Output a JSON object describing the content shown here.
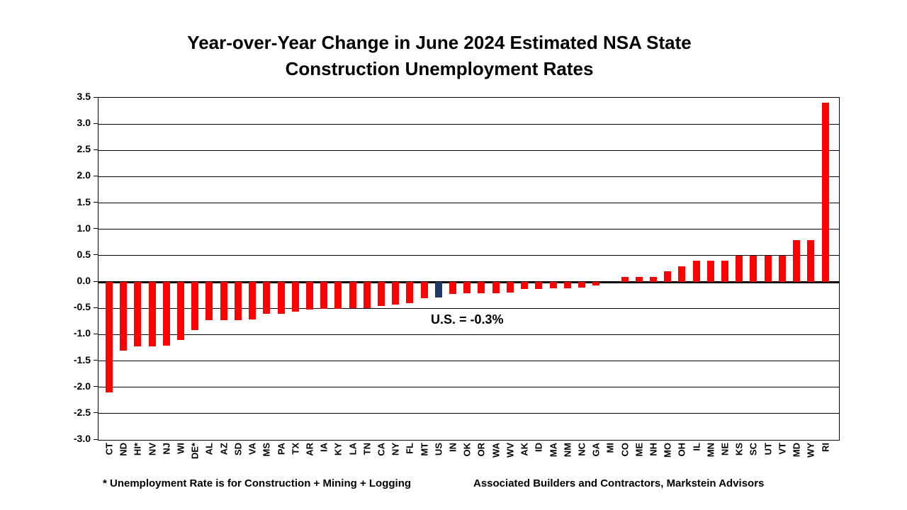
{
  "title": {
    "line1": "Year-over-Year Change in June 2024 Estimated NSA State",
    "line2": "Construction Unemployment Rates"
  },
  "annotation": {
    "us_note": "U.S. = -0.3%"
  },
  "footnotes": {
    "left": "* Unemployment Rate is for Construction + Mining + Logging",
    "right": "Associated Builders and Contractors, Markstein Advisors"
  },
  "colors": {
    "bar": "#FF0000",
    "us_bar": "#1F3864",
    "axis": "#000000",
    "background": "#FFFFFF"
  },
  "chart_data": {
    "type": "bar",
    "title": "Year-over-Year Change in June 2024 Estimated NSA State Construction Unemployment Rates",
    "xlabel": "",
    "ylabel": "",
    "ylim": [
      -3.0,
      3.5
    ],
    "yticks": [
      3.5,
      3.0,
      2.5,
      2.0,
      1.5,
      1.0,
      0.5,
      0.0,
      -0.5,
      -1.0,
      -1.5,
      -2.0,
      -2.5,
      -3.0
    ],
    "grid": true,
    "legend": false,
    "highlight_category": "US",
    "highlight_note": "U.S. = -0.3%",
    "categories": [
      "CT",
      "ND",
      "HI*",
      "NV",
      "NJ",
      "WI",
      "DE*",
      "AL",
      "AZ",
      "SD",
      "VA",
      "MS",
      "PA",
      "TX",
      "AR",
      "IA",
      "KY",
      "LA",
      "TN",
      "CA",
      "NY",
      "FL",
      "MT",
      "US",
      "IN",
      "OK",
      "OR",
      "WA",
      "WV",
      "AK",
      "ID",
      "MA",
      "NM",
      "NC",
      "GA",
      "MI",
      "CO",
      "ME",
      "NH",
      "MO",
      "OH",
      "IL",
      "MN",
      "NE",
      "KS",
      "SC",
      "UT",
      "VT",
      "MD",
      "WY",
      "RI"
    ],
    "values": [
      -2.1,
      -1.3,
      -1.23,
      -1.22,
      -1.21,
      -1.1,
      -0.92,
      -0.72,
      -0.72,
      -0.72,
      -0.71,
      -0.61,
      -0.6,
      -0.57,
      -0.52,
      -0.51,
      -0.51,
      -0.5,
      -0.5,
      -0.45,
      -0.43,
      -0.4,
      -0.31,
      -0.3,
      -0.23,
      -0.22,
      -0.22,
      -0.21,
      -0.2,
      -0.13,
      -0.13,
      -0.12,
      -0.12,
      -0.11,
      -0.07,
      0.0,
      0.1,
      0.1,
      0.1,
      0.2,
      0.3,
      0.4,
      0.4,
      0.4,
      0.5,
      0.5,
      0.5,
      0.5,
      0.8,
      0.8,
      3.4
    ]
  }
}
